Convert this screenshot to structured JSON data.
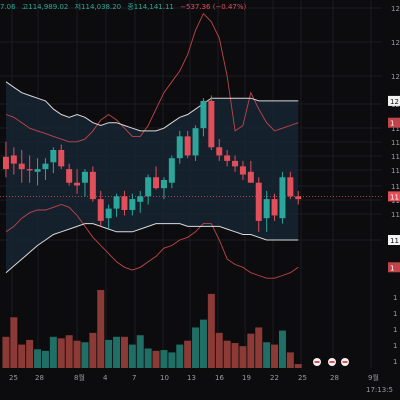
{
  "header": {
    "ohlc": [
      {
        "text": "7.06",
        "tone": "up"
      },
      {
        "text": "고114,989.02",
        "tone": "up"
      },
      {
        "text": "저114,038.20",
        "tone": "up"
      },
      {
        "text": "종114,141.11",
        "tone": "up"
      },
      {
        "text": "−537.36 (−0.47%)",
        "tone": "dn"
      }
    ]
  },
  "footer": {
    "time": "17:13:5"
  },
  "colors": {
    "bg": "#0c0c0f",
    "up": "#2aa79a",
    "down": "#e04f5a",
    "up_vol": "#1f6f66",
    "down_vol": "#8c3a36",
    "band_fill": "#172533",
    "band_line": "#d9d9d9",
    "env_line": "#c0454b",
    "grid": "#1b1b21",
    "axis_text": "#9a9aa2"
  },
  "chart_data": {
    "type": "candlestick",
    "x_tick_labels": [
      "25",
      "28",
      "8월",
      "4",
      "7",
      "10",
      "13",
      "16",
      "19",
      "22",
      "25",
      "28",
      "9월"
    ],
    "price_axis_labels": [
      "12",
      "12",
      "12",
      "12",
      "11",
      "11",
      "11",
      "11",
      "11",
      "11",
      "11",
      "11"
    ],
    "volume_axis_labels": [
      "1",
      "1",
      "1",
      "1",
      "1"
    ],
    "last_price_label": "11",
    "upper_band_label": "12",
    "lower_band_label": "11",
    "price_range": [
      105,
      127
    ],
    "volume_range": [
      0,
      100
    ],
    "candles": [
      {
        "o": 115.5,
        "h": 116.6,
        "l": 114.0,
        "c": 114.6,
        "v": 40
      },
      {
        "o": 115.6,
        "h": 116.2,
        "l": 114.2,
        "c": 115.0,
        "v": 65
      },
      {
        "o": 115.0,
        "h": 116.0,
        "l": 113.6,
        "c": 114.6,
        "v": 30
      },
      {
        "o": 114.6,
        "h": 115.6,
        "l": 113.6,
        "c": 114.5,
        "v": 36
      },
      {
        "o": 114.4,
        "h": 115.4,
        "l": 113.4,
        "c": 114.6,
        "v": 24
      },
      {
        "o": 114.6,
        "h": 115.4,
        "l": 113.8,
        "c": 115.0,
        "v": 22
      },
      {
        "o": 115.1,
        "h": 116.2,
        "l": 114.3,
        "c": 116.0,
        "v": 40
      },
      {
        "o": 116.0,
        "h": 116.4,
        "l": 114.6,
        "c": 114.8,
        "v": 38
      },
      {
        "o": 114.6,
        "h": 115.0,
        "l": 113.4,
        "c": 113.6,
        "v": 42
      },
      {
        "o": 113.6,
        "h": 114.6,
        "l": 112.8,
        "c": 113.4,
        "v": 35
      },
      {
        "o": 113.6,
        "h": 114.6,
        "l": 112.6,
        "c": 114.4,
        "v": 33
      },
      {
        "o": 114.4,
        "h": 114.8,
        "l": 112.2,
        "c": 112.4,
        "v": 45
      },
      {
        "o": 112.4,
        "h": 113.0,
        "l": 110.4,
        "c": 110.8,
        "v": 100
      },
      {
        "o": 111.0,
        "h": 112.0,
        "l": 110.2,
        "c": 111.7,
        "v": 36
      },
      {
        "o": 111.7,
        "h": 112.8,
        "l": 111.1,
        "c": 112.6,
        "v": 40
      },
      {
        "o": 112.6,
        "h": 113.0,
        "l": 111.2,
        "c": 111.6,
        "v": 40
      },
      {
        "o": 111.6,
        "h": 112.8,
        "l": 111.2,
        "c": 112.4,
        "v": 30
      },
      {
        "o": 112.2,
        "h": 113.0,
        "l": 111.4,
        "c": 112.6,
        "v": 42
      },
      {
        "o": 112.6,
        "h": 114.2,
        "l": 112.0,
        "c": 114.0,
        "v": 25
      },
      {
        "o": 114.0,
        "h": 114.8,
        "l": 113.1,
        "c": 113.2,
        "v": 22
      },
      {
        "o": 113.2,
        "h": 114.0,
        "l": 112.4,
        "c": 113.8,
        "v": 23
      },
      {
        "o": 113.6,
        "h": 115.6,
        "l": 113.2,
        "c": 115.4,
        "v": 20
      },
      {
        "o": 115.4,
        "h": 117.4,
        "l": 115.0,
        "c": 117.0,
        "v": 30
      },
      {
        "o": 117.0,
        "h": 117.4,
        "l": 115.4,
        "c": 115.6,
        "v": 35
      },
      {
        "o": 115.6,
        "h": 117.8,
        "l": 115.2,
        "c": 117.6,
        "v": 52
      },
      {
        "o": 117.6,
        "h": 119.8,
        "l": 117.0,
        "c": 119.6,
        "v": 62
      },
      {
        "o": 119.6,
        "h": 120.0,
        "l": 116.0,
        "c": 116.2,
        "v": 95
      },
      {
        "o": 116.2,
        "h": 116.8,
        "l": 115.2,
        "c": 115.6,
        "v": 45
      },
      {
        "o": 115.6,
        "h": 116.0,
        "l": 114.8,
        "c": 115.2,
        "v": 35
      },
      {
        "o": 115.2,
        "h": 115.6,
        "l": 114.4,
        "c": 114.8,
        "v": 32
      },
      {
        "o": 114.8,
        "h": 115.2,
        "l": 113.8,
        "c": 114.2,
        "v": 28
      },
      {
        "o": 114.4,
        "h": 115.2,
        "l": 113.6,
        "c": 113.6,
        "v": 44
      },
      {
        "o": 113.6,
        "h": 114.0,
        "l": 110.0,
        "c": 110.8,
        "v": 52
      },
      {
        "o": 111.0,
        "h": 113.0,
        "l": 110.0,
        "c": 112.4,
        "v": 33
      },
      {
        "o": 112.4,
        "h": 112.8,
        "l": 110.8,
        "c": 111.2,
        "v": 30
      },
      {
        "o": 111.0,
        "h": 114.4,
        "l": 110.6,
        "c": 114.0,
        "v": 48
      },
      {
        "o": 114.0,
        "h": 114.4,
        "l": 112.4,
        "c": 112.6,
        "v": 20
      },
      {
        "o": 112.6,
        "h": 113.0,
        "l": 112.0,
        "c": 112.4,
        "v": 5
      }
    ],
    "bb_upper": [
      121.0,
      120.6,
      120.2,
      120.0,
      119.8,
      119.6,
      119.0,
      118.6,
      118.4,
      118.6,
      118.4,
      118.0,
      117.8,
      118.0,
      118.0,
      117.8,
      117.6,
      117.4,
      117.4,
      117.4,
      117.6,
      118.0,
      118.4,
      118.6,
      119.0,
      119.4,
      119.8,
      119.8,
      119.8,
      119.8,
      119.8,
      119.8,
      119.6,
      119.6,
      119.6,
      119.6,
      119.6,
      119.6
    ],
    "bb_lower": [
      107.0,
      107.5,
      108.0,
      108.5,
      109.0,
      109.4,
      109.8,
      110.0,
      110.2,
      110.4,
      110.6,
      110.6,
      110.4,
      110.2,
      110.0,
      110.0,
      110.0,
      110.2,
      110.4,
      110.6,
      110.6,
      110.6,
      110.6,
      110.4,
      110.4,
      110.4,
      110.4,
      110.4,
      110.2,
      110.0,
      109.8,
      109.8,
      109.6,
      109.4,
      109.4,
      109.4,
      109.4,
      109.4
    ],
    "env_upper": [
      118.6,
      118.4,
      118.0,
      117.6,
      117.4,
      117.2,
      117.0,
      116.8,
      116.6,
      116.6,
      116.8,
      117.4,
      118.2,
      118.6,
      118.2,
      117.6,
      117.0,
      117.0,
      117.8,
      119.0,
      120.2,
      121.0,
      121.8,
      123.0,
      124.8,
      126.0,
      125.4,
      124.2,
      121.4,
      117.4,
      117.8,
      120.2,
      119.0,
      118.0,
      117.4,
      117.6,
      117.8,
      118.0
    ],
    "env_lower": [
      110.0,
      110.4,
      111.0,
      111.4,
      111.6,
      111.6,
      111.8,
      112.0,
      111.8,
      111.2,
      110.4,
      109.6,
      109.0,
      108.4,
      107.8,
      107.4,
      107.2,
      107.4,
      107.8,
      108.2,
      108.8,
      109.0,
      109.4,
      109.6,
      110.0,
      110.6,
      110.6,
      109.4,
      108.0,
      107.6,
      107.4,
      107.0,
      106.8,
      106.6,
      106.6,
      106.8,
      107.0,
      107.4
    ],
    "price_line": 112.6
  }
}
